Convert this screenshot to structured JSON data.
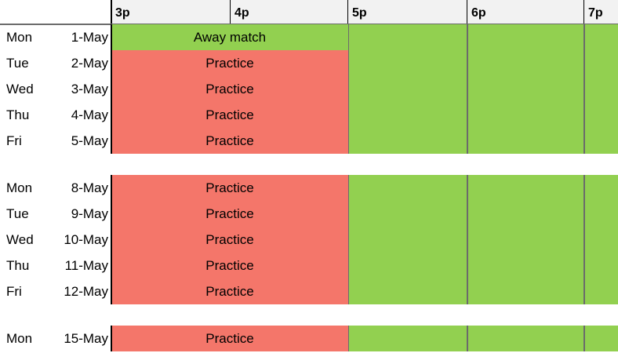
{
  "colors": {
    "header_bg": "#f2f2f2",
    "free": "#92d050",
    "practice": "#f4766a",
    "away_match": "#92d050",
    "divider": "#6b6b6b"
  },
  "time_headers": [
    "3p",
    "4p",
    "5p",
    "6p",
    "7p"
  ],
  "weeks": [
    {
      "rows": [
        {
          "day": "Mon",
          "date": "1-May",
          "event": "Away match",
          "type": "away_match"
        },
        {
          "day": "Tue",
          "date": "2-May",
          "event": "Practice",
          "type": "practice"
        },
        {
          "day": "Wed",
          "date": "3-May",
          "event": "Practice",
          "type": "practice"
        },
        {
          "day": "Thu",
          "date": "4-May",
          "event": "Practice",
          "type": "practice"
        },
        {
          "day": "Fri",
          "date": "5-May",
          "event": "Practice",
          "type": "practice"
        }
      ]
    },
    {
      "rows": [
        {
          "day": "Mon",
          "date": "8-May",
          "event": "Practice",
          "type": "practice"
        },
        {
          "day": "Tue",
          "date": "9-May",
          "event": "Practice",
          "type": "practice"
        },
        {
          "day": "Wed",
          "date": "10-May",
          "event": "Practice",
          "type": "practice"
        },
        {
          "day": "Thu",
          "date": "11-May",
          "event": "Practice",
          "type": "practice"
        },
        {
          "day": "Fri",
          "date": "12-May",
          "event": "Practice",
          "type": "practice"
        }
      ]
    },
    {
      "rows": [
        {
          "day": "Mon",
          "date": "15-May",
          "event": "Practice",
          "type": "practice"
        }
      ]
    }
  ]
}
